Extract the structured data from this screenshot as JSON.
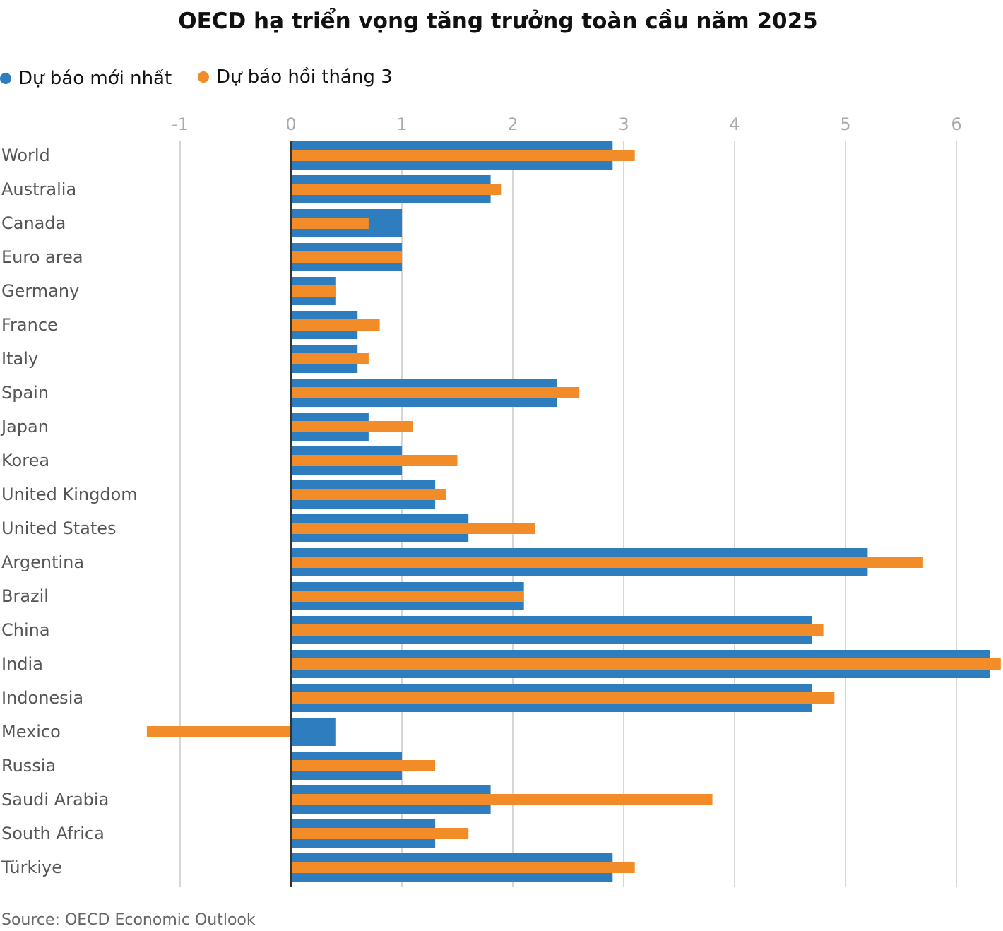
{
  "chart_data": {
    "type": "bar",
    "orientation": "horizontal",
    "title": "OECD hạ triển vọng tăng trưởng toàn cầu năm 2025",
    "xlabel": "",
    "ylabel": "",
    "xlim": [
      -1,
      6.4
    ],
    "xticks": [
      -1,
      0,
      1,
      2,
      3,
      4,
      5,
      6
    ],
    "grid": true,
    "legend_position": "top-left",
    "categories": [
      "World",
      "Australia",
      "Canada",
      "Euro area",
      "Germany",
      "France",
      "Italy",
      "Spain",
      "Japan",
      "Korea",
      "United Kingdom",
      "United States",
      "Argentina",
      "Brazil",
      "China",
      "India",
      "Indonesia",
      "Mexico",
      "Russia",
      "Saudi Arabia",
      "South Africa",
      "Türkiye"
    ],
    "series": [
      {
        "name": "Dự báo mới nhất",
        "color": "#2e7ebf",
        "values": [
          2.9,
          1.8,
          1.0,
          1.0,
          0.4,
          0.6,
          0.6,
          2.4,
          0.7,
          1.0,
          1.3,
          1.6,
          5.2,
          2.1,
          4.7,
          6.3,
          4.7,
          0.4,
          1.0,
          1.8,
          1.3,
          2.9
        ]
      },
      {
        "name": "Dự báo hồi tháng 3",
        "color": "#f28c28",
        "values": [
          3.1,
          1.9,
          0.7,
          1.0,
          0.4,
          0.8,
          0.7,
          2.6,
          1.1,
          1.5,
          1.4,
          2.2,
          5.7,
          2.1,
          4.8,
          6.4,
          4.9,
          -1.3,
          1.3,
          3.8,
          1.6,
          3.1
        ]
      }
    ],
    "source": "Source: OECD Economic Outlook"
  }
}
